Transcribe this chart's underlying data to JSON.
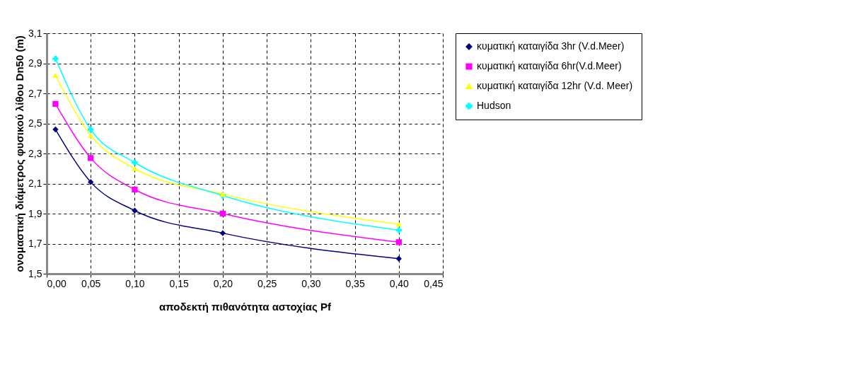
{
  "chart_data": {
    "type": "line",
    "xlabel": "αποδεκτή πιθανότητα αστοχίας Pf",
    "ylabel": "ονομαστική διάμετρος φυσικού λίθου Dn50 (m)",
    "x": [
      0.01,
      0.05,
      0.1,
      0.2,
      0.4
    ],
    "series": [
      {
        "name": "κυματική καταιγίδα 3hr (V.d.Meer)",
        "color": "#000080",
        "marker": "diamond",
        "values": [
          2.46,
          2.11,
          1.92,
          1.77,
          1.6
        ]
      },
      {
        "name": "κυματική καταιγίδα 6hr(V.d.Meer)",
        "color": "#ff00ff",
        "marker": "square",
        "values": [
          2.63,
          2.27,
          2.06,
          1.9,
          1.71
        ]
      },
      {
        "name": "κυματική καταιγίδα 12hr (V.d. Meer)",
        "color": "#ffff00",
        "marker": "triangle",
        "values": [
          2.82,
          2.42,
          2.2,
          2.03,
          1.83
        ]
      },
      {
        "name": "Hudson",
        "color": "#00ffff",
        "marker": "cross",
        "values": [
          2.93,
          2.46,
          2.24,
          2.02,
          1.79
        ]
      }
    ],
    "xlim": [
      0,
      0.45
    ],
    "xticks": [
      {
        "value": 0,
        "label": "0,00"
      },
      {
        "value": 0.05,
        "label": "0,05"
      },
      {
        "value": 0.1,
        "label": "0,10"
      },
      {
        "value": 0.15,
        "label": "0,15"
      },
      {
        "value": 0.2,
        "label": "0,20"
      },
      {
        "value": 0.25,
        "label": "0,25"
      },
      {
        "value": 0.3,
        "label": "0,30"
      },
      {
        "value": 0.35,
        "label": "0,35"
      },
      {
        "value": 0.4,
        "label": "0,40"
      },
      {
        "value": 0.45,
        "label": "0,45"
      }
    ],
    "ylim": [
      1.5,
      3.1
    ],
    "yticks": [
      {
        "value": 1.5,
        "label": "1,5"
      },
      {
        "value": 1.7,
        "label": "1,7"
      },
      {
        "value": 1.9,
        "label": "1,9"
      },
      {
        "value": 2.1,
        "label": "2,1"
      },
      {
        "value": 2.3,
        "label": "2,3"
      },
      {
        "value": 2.5,
        "label": "2,5"
      },
      {
        "value": 2.7,
        "label": "2,7"
      },
      {
        "value": 2.9,
        "label": "2,9"
      },
      {
        "value": 3.1,
        "label": "3,1"
      }
    ],
    "grid": true,
    "legend": "right",
    "line_style": "solid"
  }
}
